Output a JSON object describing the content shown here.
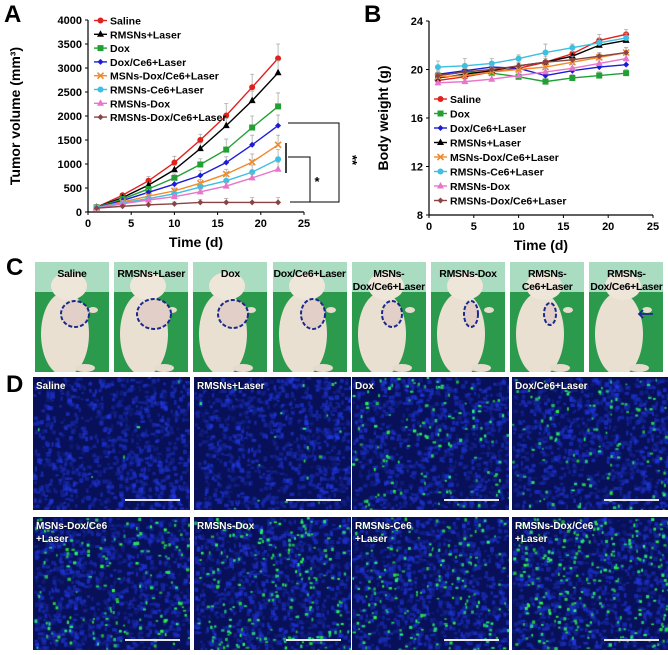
{
  "panel_labels": {
    "a": "A",
    "b": "B",
    "c": "C",
    "d": "D"
  },
  "chart_data": [
    {
      "type": "line",
      "panel": "A",
      "xlabel": "Time (d)",
      "ylabel": "Tumor volume (mm³)",
      "xlim": [
        0,
        25
      ],
      "ylim": [
        0,
        4000
      ],
      "xticks": [
        0,
        5,
        10,
        15,
        20,
        25
      ],
      "yticks": [
        0,
        500,
        1000,
        1500,
        2000,
        2500,
        3000,
        3500,
        4000
      ],
      "legend_position": "top-left",
      "x": [
        1,
        4,
        7,
        10,
        13,
        16,
        19,
        22
      ],
      "series": [
        {
          "name": "Saline",
          "color": "#e3211c",
          "marker": "circle",
          "values": [
            100,
            350,
            650,
            1030,
            1500,
            2010,
            2600,
            3200
          ],
          "errors": [
            20,
            30,
            90,
            130,
            120,
            250,
            270,
            300
          ]
        },
        {
          "name": "RMSNs+Laser",
          "color": "#000000",
          "marker": "triangle",
          "values": [
            100,
            300,
            560,
            880,
            1320,
            1800,
            2320,
            2900
          ],
          "errors": [
            20,
            30,
            60,
            90,
            120,
            150,
            200,
            250
          ]
        },
        {
          "name": "Dox",
          "color": "#22a034",
          "marker": "square",
          "values": [
            100,
            270,
            480,
            710,
            990,
            1300,
            1760,
            2200
          ],
          "errors": [
            20,
            30,
            50,
            80,
            120,
            220,
            240,
            280
          ]
        },
        {
          "name": "Dox/Ce6+Laser",
          "color": "#1c1cd8",
          "marker": "diamond",
          "values": [
            90,
            240,
            410,
            580,
            760,
            1030,
            1400,
            1800
          ],
          "errors": [
            15,
            30,
            50,
            70,
            100,
            120,
            200,
            220
          ]
        },
        {
          "name": "MSNs-Dox/Ce6+Laser",
          "color": "#f08a2c",
          "marker": "x",
          "values": [
            90,
            210,
            330,
            440,
            600,
            790,
            1040,
            1400
          ],
          "errors": [
            15,
            25,
            40,
            60,
            80,
            100,
            170,
            200
          ]
        },
        {
          "name": "RMSNs-Ce6+Laser",
          "color": "#3cbfe0",
          "marker": "circle",
          "values": [
            90,
            190,
            280,
            380,
            520,
            650,
            830,
            1100
          ],
          "errors": [
            15,
            20,
            40,
            50,
            70,
            100,
            150,
            200
          ]
        },
        {
          "name": "RMSNs-Dox",
          "color": "#e874cc",
          "marker": "triangle",
          "values": [
            80,
            170,
            250,
            320,
            420,
            540,
            710,
            890
          ],
          "errors": [
            15,
            20,
            30,
            40,
            60,
            80,
            100,
            150
          ]
        },
        {
          "name": "RMSNs-Dox/Ce6+Laser",
          "color": "#8a4444",
          "marker": "diamond",
          "values": [
            80,
            120,
            150,
            170,
            200,
            200,
            200,
            200
          ],
          "errors": [
            10,
            20,
            30,
            40,
            60,
            80,
            100,
            100
          ]
        }
      ],
      "annotations": [
        "**",
        "*"
      ]
    },
    {
      "type": "line",
      "panel": "B",
      "xlabel": "Time (d)",
      "ylabel": "Body weight (g)",
      "xlim": [
        0,
        25
      ],
      "ylim": [
        8,
        24
      ],
      "xticks": [
        0,
        5,
        10,
        15,
        20,
        25
      ],
      "yticks": [
        8,
        12,
        16,
        20,
        24
      ],
      "legend_position": "bottom-left",
      "x": [
        1,
        4,
        7,
        10,
        13,
        16,
        19,
        22
      ],
      "series": [
        {
          "name": "Saline",
          "color": "#e3211c",
          "marker": "circle",
          "values": [
            19.1,
            19.4,
            19.8,
            20.1,
            20.6,
            21.3,
            22.4,
            22.9
          ],
          "errors": [
            0.4,
            0.4,
            0.4,
            0.4,
            0.5,
            0.5,
            0.5,
            0.4
          ]
        },
        {
          "name": "Dox",
          "color": "#22a034",
          "marker": "square",
          "values": [
            19.5,
            19.8,
            19.7,
            19.4,
            19.0,
            19.3,
            19.5,
            19.7
          ],
          "errors": [
            0.3,
            0.3,
            0.3,
            0.3,
            0.3,
            0.3,
            0.3,
            0.3
          ]
        },
        {
          "name": "Dox/Ce6+Laser",
          "color": "#1c1cd8",
          "marker": "diamond",
          "values": [
            19.6,
            19.9,
            20.2,
            20.1,
            19.5,
            19.9,
            20.2,
            20.4
          ],
          "errors": [
            0.3,
            0.3,
            0.3,
            0.3,
            0.3,
            0.3,
            0.3,
            0.3
          ]
        },
        {
          "name": "RMSNs+Laser",
          "color": "#000000",
          "marker": "triangle",
          "values": [
            19.3,
            19.6,
            19.9,
            20.3,
            20.6,
            21.1,
            22.0,
            22.4
          ],
          "errors": [
            0.3,
            0.3,
            0.3,
            0.3,
            0.3,
            0.4,
            0.4,
            0.4
          ]
        },
        {
          "name": "MSNs-Dox/Ce6+Laser",
          "color": "#f08a2c",
          "marker": "x",
          "values": [
            19.4,
            19.5,
            19.8,
            20.0,
            20.2,
            20.6,
            21.0,
            21.4
          ],
          "errors": [
            0.3,
            0.3,
            0.3,
            0.3,
            0.3,
            0.3,
            0.3,
            0.4
          ]
        },
        {
          "name": "RMSNs-Ce6+Laser",
          "color": "#3cbfe0",
          "marker": "circle",
          "values": [
            20.2,
            20.3,
            20.5,
            20.9,
            21.4,
            21.8,
            22.2,
            22.6
          ],
          "errors": [
            0.5,
            0.6,
            0.4,
            0.3,
            0.7,
            0.3,
            0.4,
            0.4
          ]
        },
        {
          "name": "RMSNs-Dox",
          "color": "#e874cc",
          "marker": "triangle",
          "values": [
            18.9,
            19.0,
            19.2,
            19.5,
            19.8,
            20.1,
            20.5,
            20.9
          ],
          "errors": [
            0.4,
            0.3,
            0.3,
            0.3,
            0.3,
            0.3,
            0.3,
            0.3
          ]
        },
        {
          "name": "RMSNs-Dox/Ce6+Laser",
          "color": "#8a4444",
          "marker": "diamond",
          "values": [
            19.5,
            19.8,
            20.0,
            20.3,
            20.6,
            20.8,
            21.1,
            21.4
          ],
          "errors": [
            0.3,
            0.3,
            0.3,
            0.3,
            0.3,
            0.3,
            0.3,
            0.4
          ]
        }
      ]
    }
  ],
  "photos": [
    {
      "label": "Saline"
    },
    {
      "label": "RMSNs+Laser"
    },
    {
      "label": "Dox"
    },
    {
      "label": "Dox/Ce6+Laser"
    },
    {
      "label": "MSNs-\nDox/Ce6+Laser"
    },
    {
      "label": "RMSNs-Dox"
    },
    {
      "label": "RMSNs-\nCe6+Laser"
    },
    {
      "label": "RMSNs-\nDox/Ce6+Laser"
    }
  ],
  "micrographs": [
    {
      "label": "Saline"
    },
    {
      "label": "RMSNs+Laser"
    },
    {
      "label": "Dox"
    },
    {
      "label": "Dox/Ce6+Laser"
    },
    {
      "label": "MSNs-Dox/Ce6\n+Laser"
    },
    {
      "label": "RMSNs-Dox"
    },
    {
      "label": "RMSNs-Ce6\n+Laser"
    },
    {
      "label": "RMSNs-Dox/Ce6\n+Laser"
    }
  ]
}
